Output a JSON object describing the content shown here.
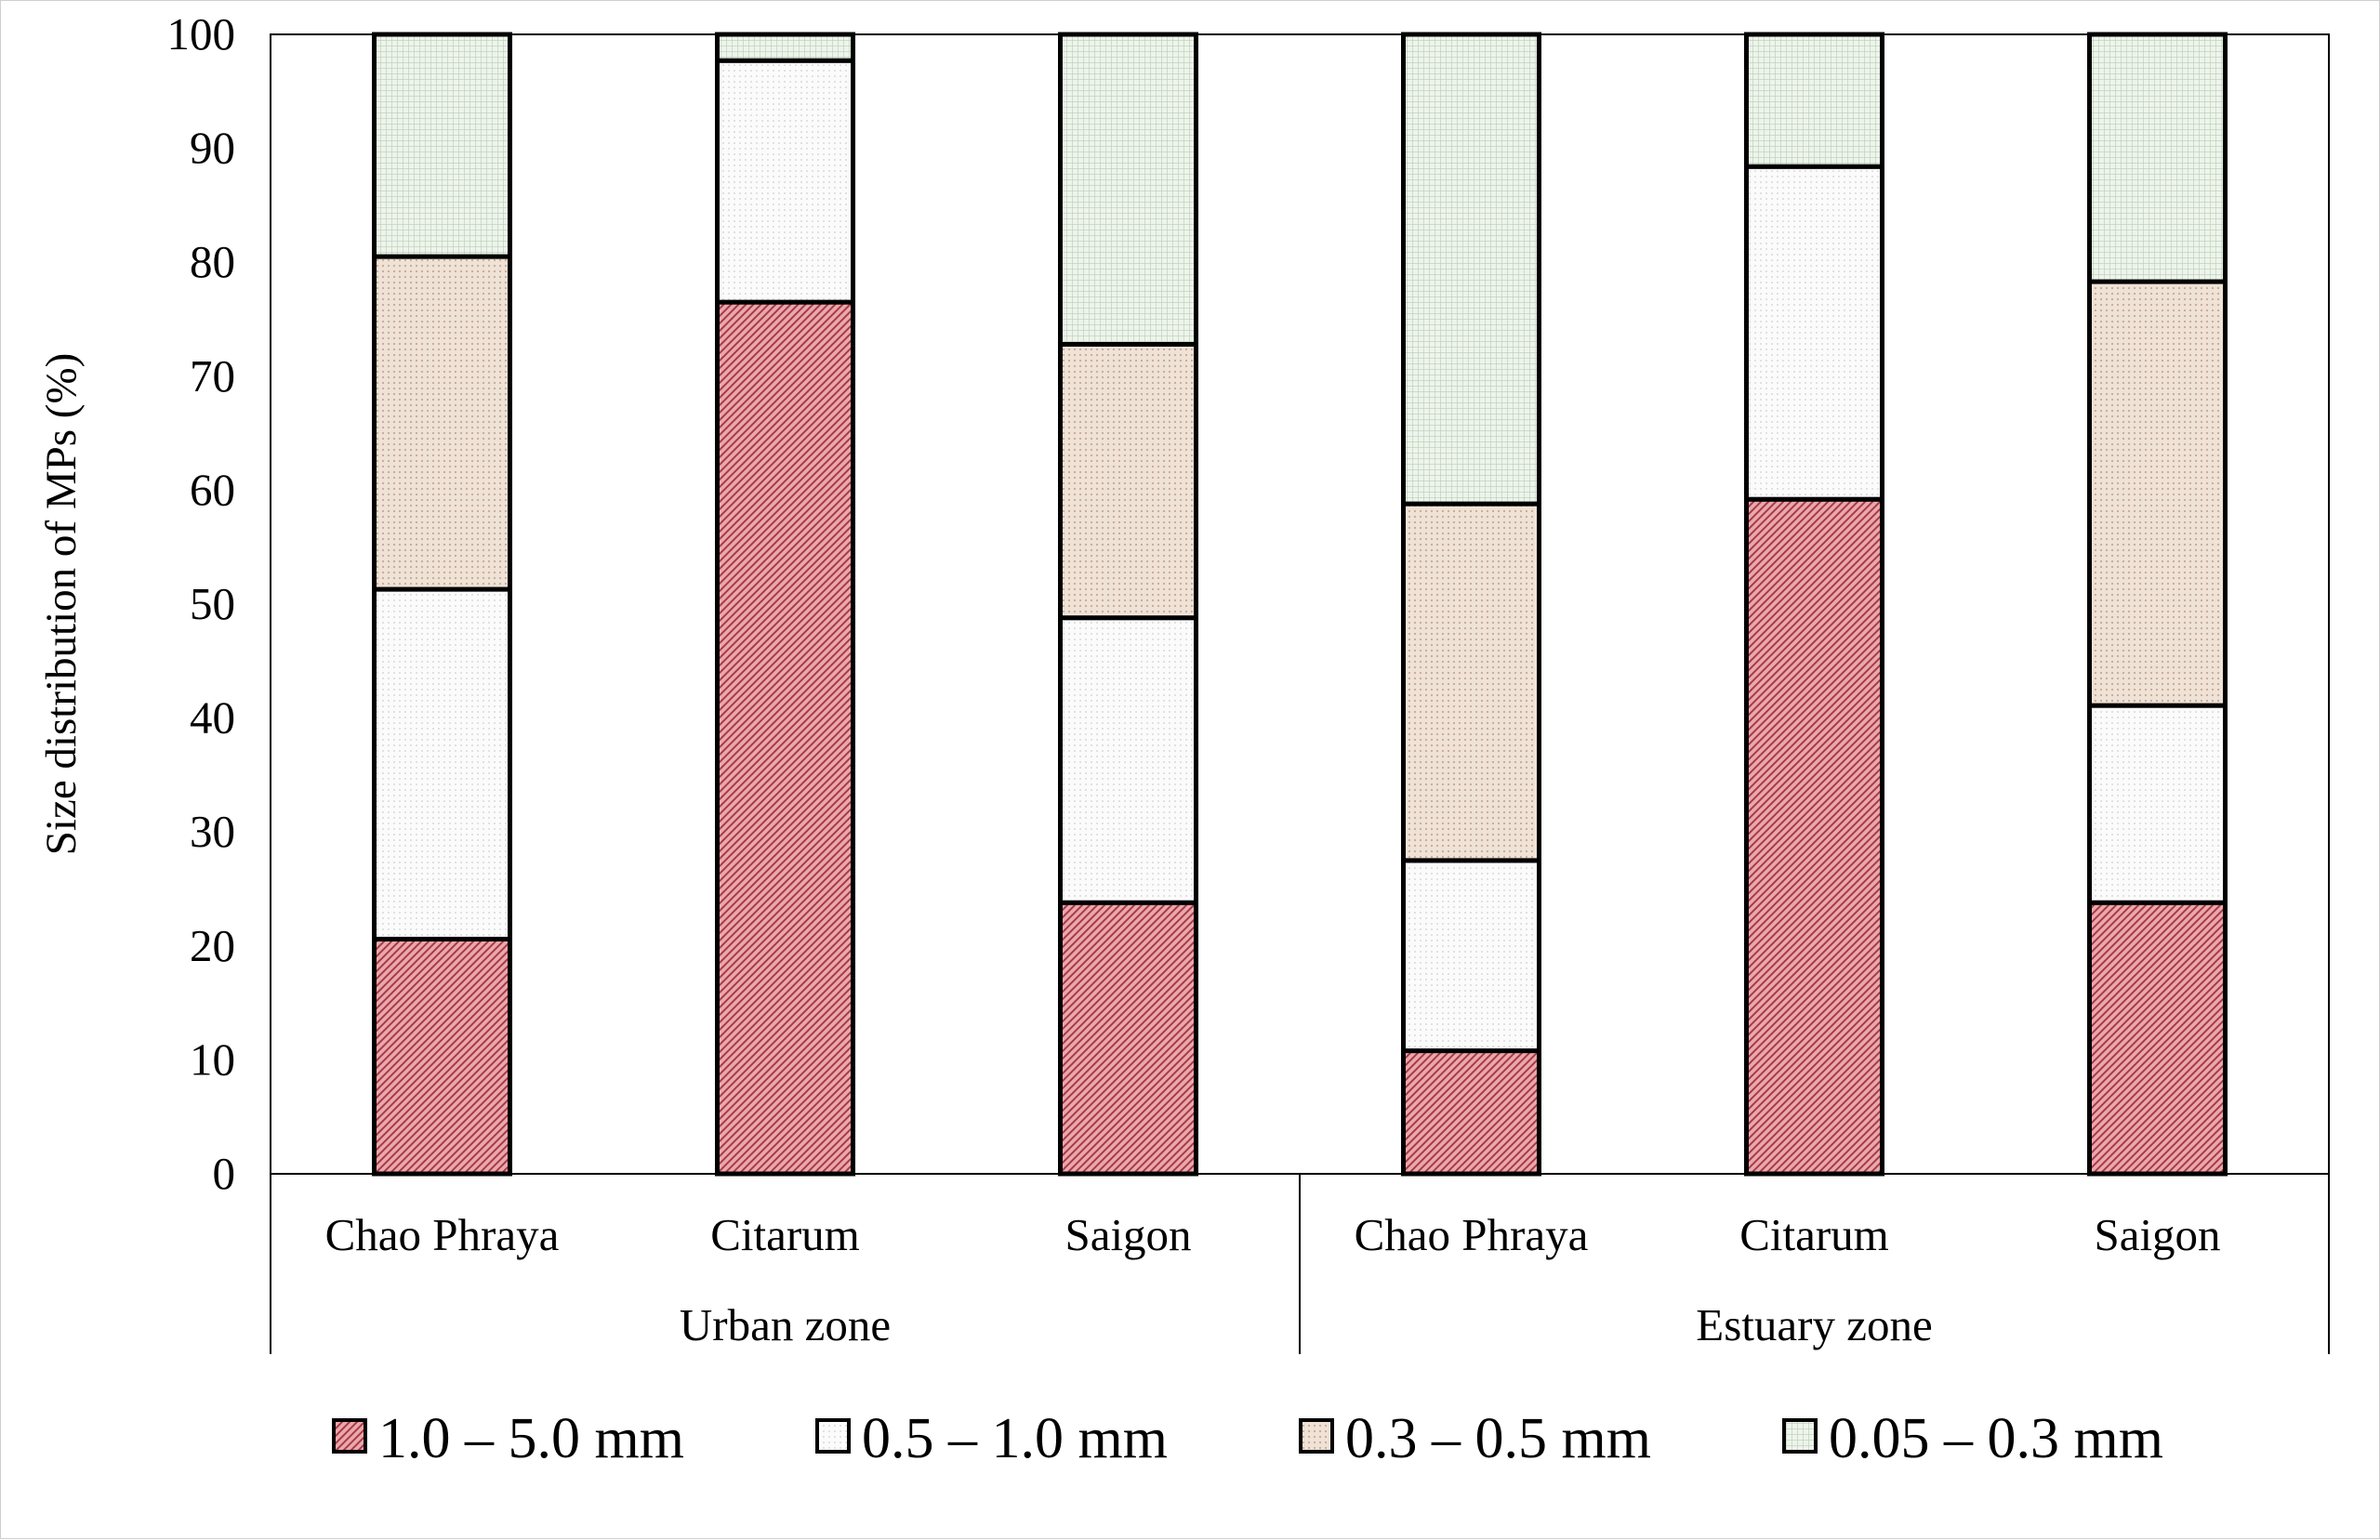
{
  "chart_data": {
    "type": "bar",
    "stacked": true,
    "ylabel": "Size distribution of MPs (%)",
    "xlabel": "",
    "ylim": [
      0,
      100
    ],
    "yticks": [
      "0",
      "10",
      "20",
      "30",
      "40",
      "50",
      "60",
      "70",
      "80",
      "90",
      "100"
    ],
    "grid": false,
    "legend_position": "bottom",
    "categories": [
      "Chao Phraya",
      "Citarum",
      "Saigon",
      "Chao Phraya",
      "Citarum",
      "Saigon"
    ],
    "groups": [
      {
        "label": "Urban zone",
        "categories": [
          "Chao Phraya",
          "Citarum",
          "Saigon"
        ]
      },
      {
        "label": "Estuary zone",
        "categories": [
          "Chao Phraya",
          "Citarum",
          "Saigon"
        ]
      }
    ],
    "series": [
      {
        "name": "1.0 – 5.0 mm",
        "color": "#d8848b",
        "pattern": "diagonal-hatch",
        "values": [
          20.6,
          76.5,
          23.8,
          10.8,
          59.2,
          23.8
        ]
      },
      {
        "name": "0.5 – 1.0 mm",
        "color": "#f2f2f2",
        "pattern": "fine-dots",
        "values": [
          30.7,
          21.2,
          25.0,
          16.7,
          29.2,
          17.3
        ]
      },
      {
        "name": "0.3 – 0.5 mm",
        "color": "#e6d4c6",
        "pattern": "fine-dots",
        "values": [
          29.2,
          0.0,
          24.0,
          31.3,
          0.0,
          37.2
        ]
      },
      {
        "name": "0.05 – 0.3 mm",
        "color": "#dbe7d8",
        "pattern": "grid",
        "values": [
          19.5,
          2.3,
          27.2,
          41.2,
          11.6,
          21.7
        ]
      }
    ]
  }
}
